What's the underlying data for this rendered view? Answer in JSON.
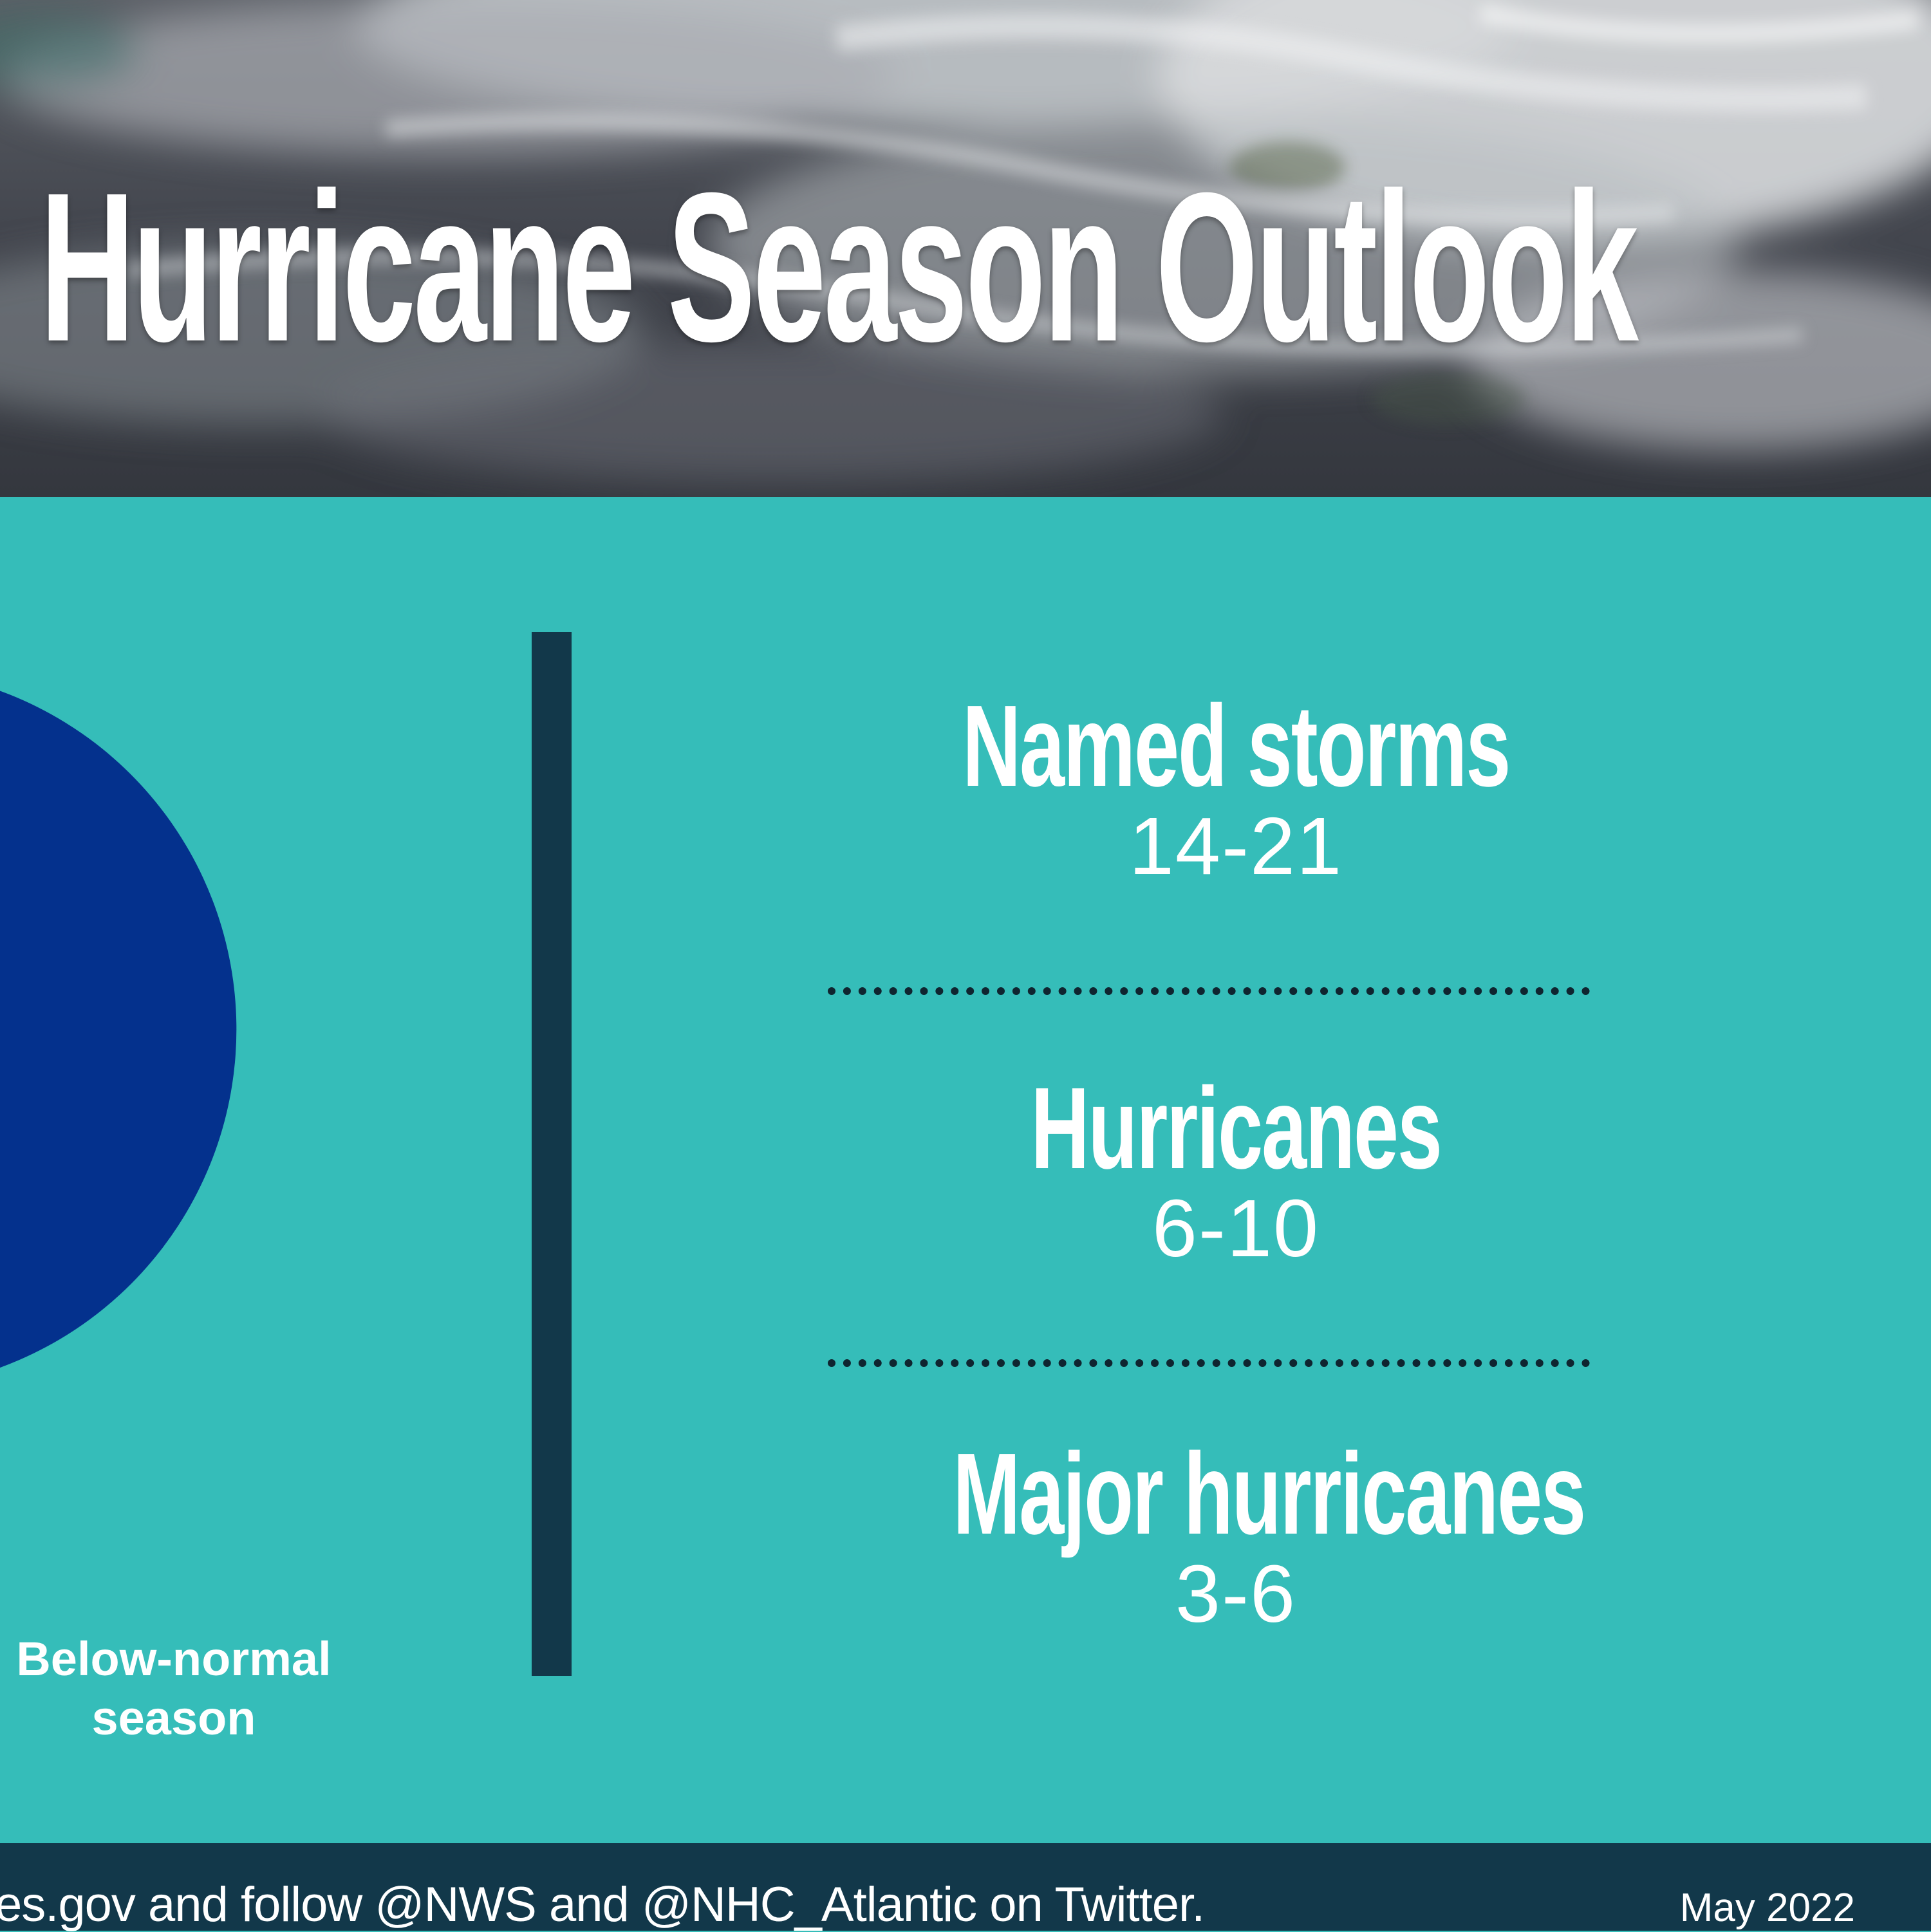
{
  "header": {
    "title": "Hurricane Season Outlook"
  },
  "outlook": {
    "season_label_line1": "Below-normal",
    "season_label_line2": "season",
    "slice_color": "#04318d",
    "background_color": "#35bdb9"
  },
  "stats": [
    {
      "name": "Named storms",
      "value": "14-21"
    },
    {
      "name": "Hurricanes",
      "value": "6-10"
    },
    {
      "name": "Major hurricanes",
      "value": "3-6"
    }
  ],
  "footer": {
    "text": "es.gov and follow @NWS and @NHC_Atlantic on Twitter.",
    "date": "May 2022"
  }
}
